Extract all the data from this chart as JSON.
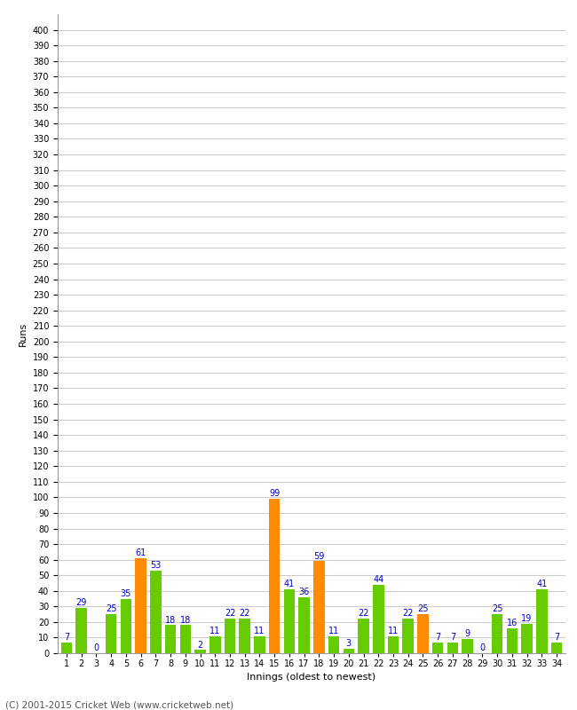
{
  "title": "",
  "xlabel": "Innings (oldest to newest)",
  "ylabel": "Runs",
  "ylim": [
    0,
    410
  ],
  "yticks": [
    0,
    10,
    20,
    30,
    40,
    50,
    60,
    70,
    80,
    90,
    100,
    110,
    120,
    130,
    140,
    150,
    160,
    170,
    180,
    190,
    200,
    210,
    220,
    230,
    240,
    250,
    260,
    270,
    280,
    290,
    300,
    310,
    320,
    330,
    340,
    350,
    360,
    370,
    380,
    390,
    400
  ],
  "innings": [
    1,
    2,
    3,
    4,
    5,
    6,
    7,
    8,
    9,
    10,
    11,
    12,
    13,
    14,
    15,
    16,
    17,
    18,
    19,
    20,
    21,
    22,
    23,
    24,
    25,
    26,
    27,
    28,
    29,
    30,
    31,
    32,
    33,
    34
  ],
  "values": [
    7,
    29,
    0,
    25,
    35,
    61,
    53,
    18,
    18,
    2,
    11,
    22,
    22,
    11,
    99,
    41,
    36,
    59,
    11,
    3,
    22,
    44,
    11,
    22,
    25,
    7,
    7,
    9,
    0,
    25,
    16,
    19,
    41,
    7
  ],
  "colors": [
    "#66cc00",
    "#66cc00",
    "#66cc00",
    "#66cc00",
    "#66cc00",
    "#ff8c00",
    "#66cc00",
    "#66cc00",
    "#66cc00",
    "#66cc00",
    "#66cc00",
    "#66cc00",
    "#66cc00",
    "#66cc00",
    "#ff8c00",
    "#66cc00",
    "#66cc00",
    "#ff8c00",
    "#66cc00",
    "#66cc00",
    "#66cc00",
    "#66cc00",
    "#66cc00",
    "#66cc00",
    "#ff8c00",
    "#66cc00",
    "#66cc00",
    "#66cc00",
    "#66cc00",
    "#66cc00",
    "#66cc00",
    "#66cc00",
    "#66cc00",
    "#66cc00"
  ],
  "label_color": "#0000cc",
  "label_fontsize": 7,
  "tick_fontsize": 7,
  "background_color": "#ffffff",
  "grid_color": "#cccccc",
  "footer": "(C) 2001-2015 Cricket Web (www.cricketweb.net)"
}
